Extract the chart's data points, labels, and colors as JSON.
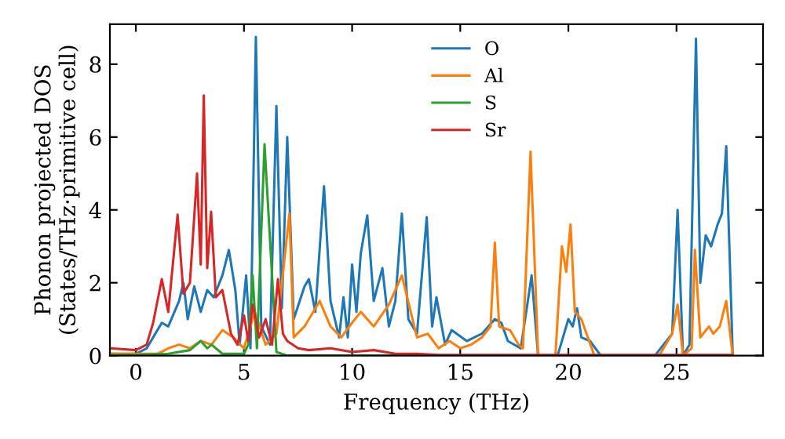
{
  "chart_data": {
    "type": "line",
    "xlabel": "Frequency (THz)",
    "ylabel": "Phonon projected DOS\n(States/THz·primitive cell)",
    "xlim": [
      -1.2,
      29
    ],
    "ylim": [
      0,
      9.1
    ],
    "xticks": [
      0,
      5,
      10,
      15,
      20,
      25
    ],
    "yticks": [
      0,
      2,
      4,
      6,
      8
    ],
    "legend": "top",
    "grid": false,
    "series": [
      {
        "name": "O",
        "color": "#1f77b4",
        "x": [
          -1.2,
          0,
          0.5,
          0.8,
          1.2,
          1.5,
          2.0,
          2.2,
          2.4,
          2.7,
          3.0,
          3.3,
          3.6,
          4.0,
          4.3,
          4.6,
          4.8,
          5.1,
          5.3,
          5.55,
          5.8,
          6.2,
          6.5,
          6.75,
          7.0,
          7.3,
          7.8,
          8.0,
          8.3,
          8.7,
          9.0,
          9.4,
          9.6,
          9.8,
          10.0,
          10.2,
          10.4,
          10.7,
          11.0,
          11.4,
          11.7,
          12.0,
          12.3,
          12.6,
          13.0,
          13.45,
          13.7,
          13.9,
          14.3,
          14.6,
          15.3,
          16.0,
          16.6,
          16.9,
          17.2,
          17.8,
          18.3,
          18.6,
          19.5,
          20.0,
          20.2,
          20.4,
          20.6,
          21.0,
          21.5,
          24.0,
          24.8,
          25.05,
          25.3,
          25.6,
          25.9,
          26.1,
          26.35,
          26.6,
          26.9,
          27.1,
          27.3,
          27.6
        ],
        "values": [
          0.05,
          0.05,
          0.2,
          0.5,
          0.9,
          0.8,
          1.5,
          2.0,
          1.0,
          1.9,
          1.2,
          1.8,
          1.6,
          2.2,
          2.9,
          1.8,
          0.3,
          2.2,
          0.2,
          8.75,
          0.8,
          0.3,
          6.85,
          1.3,
          6.0,
          1.0,
          1.9,
          2.1,
          1.2,
          4.65,
          1.5,
          0.5,
          1.6,
          0.5,
          2.5,
          1.2,
          2.8,
          3.85,
          1.5,
          2.4,
          0.8,
          1.5,
          3.9,
          1.0,
          0.6,
          3.8,
          0.8,
          1.6,
          0.3,
          0.7,
          0.4,
          0.6,
          1.0,
          0.9,
          0.4,
          0.2,
          2.2,
          0,
          0,
          1.0,
          0.8,
          1.3,
          0.5,
          0.4,
          0,
          0,
          0.6,
          4.0,
          0,
          0.3,
          8.7,
          2.0,
          3.3,
          3.0,
          3.6,
          3.9,
          5.75,
          0
        ]
      },
      {
        "name": "Al",
        "color": "#ff7f0e",
        "x": [
          -1.2,
          0,
          1.0,
          1.5,
          2.0,
          2.5,
          3.0,
          3.5,
          4.0,
          4.5,
          5.0,
          5.5,
          6.0,
          6.5,
          7.1,
          7.3,
          7.8,
          8.5,
          9.0,
          9.5,
          10.0,
          10.4,
          11.0,
          11.7,
          12.3,
          13.0,
          13.5,
          14.0,
          14.5,
          15.0,
          15.5,
          16.0,
          16.4,
          16.6,
          16.8,
          17.3,
          17.7,
          17.9,
          18.25,
          18.6,
          19.4,
          19.7,
          19.9,
          20.1,
          20.3,
          20.6,
          21.2,
          24.2,
          24.8,
          25.05,
          25.3,
          25.7,
          25.85,
          26.1,
          26.5,
          26.7,
          27.0,
          27.3,
          27.6
        ],
        "values": [
          0.05,
          0.05,
          0.05,
          0.2,
          0.3,
          0.2,
          0.4,
          0.3,
          0.7,
          0.5,
          0.2,
          1.2,
          0.3,
          0.6,
          3.9,
          0.5,
          0.8,
          1.5,
          0.8,
          0.5,
          0.9,
          1.2,
          0.8,
          1.4,
          2.2,
          0.5,
          0.6,
          0.2,
          0.4,
          0.2,
          0.3,
          0.5,
          0.8,
          3.1,
          0.8,
          0.7,
          0.3,
          0.2,
          5.6,
          0,
          0,
          3.0,
          2.3,
          3.6,
          1.2,
          1.0,
          0,
          0,
          0.6,
          1.4,
          0,
          0.2,
          2.9,
          0.5,
          0.8,
          0.6,
          0.8,
          1.5,
          0
        ]
      },
      {
        "name": "S",
        "color": "#2ca02c",
        "x": [
          -1.2,
          0,
          1.5,
          2.5,
          3.0,
          3.3,
          3.5,
          4.0,
          5.0,
          5.2,
          5.4,
          5.6,
          5.95,
          6.5,
          7.0,
          27.6
        ],
        "values": [
          0.02,
          0.02,
          0.05,
          0.15,
          0.4,
          0.2,
          0.3,
          0.05,
          0.05,
          0.3,
          2.2,
          0.2,
          5.8,
          0.1,
          0,
          0
        ]
      },
      {
        "name": "Sr",
        "color": "#d62728",
        "x": [
          -1.2,
          0,
          0.5,
          0.8,
          1.2,
          1.5,
          1.93,
          2.2,
          2.5,
          2.83,
          3.0,
          3.14,
          3.3,
          3.48,
          3.7,
          4.0,
          4.4,
          4.7,
          5.0,
          5.2,
          5.4,
          5.7,
          6.0,
          6.3,
          6.57,
          6.8,
          7.0,
          7.5,
          8.0,
          9.0,
          10.0,
          11.0,
          12.0,
          13.0,
          14.0,
          15.0,
          27.6
        ],
        "values": [
          0.2,
          0.15,
          0.3,
          0.9,
          2.1,
          1.2,
          3.87,
          1.7,
          2.0,
          5.0,
          2.5,
          7.14,
          2.4,
          3.95,
          1.6,
          1.8,
          0.6,
          0.3,
          1.1,
          0.4,
          1.4,
          0.5,
          1.0,
          0.3,
          2.1,
          0.6,
          0.4,
          0.2,
          0.15,
          0.2,
          0.1,
          0.15,
          0.05,
          0.05,
          0.02,
          0.02,
          0.02
        ]
      }
    ]
  }
}
